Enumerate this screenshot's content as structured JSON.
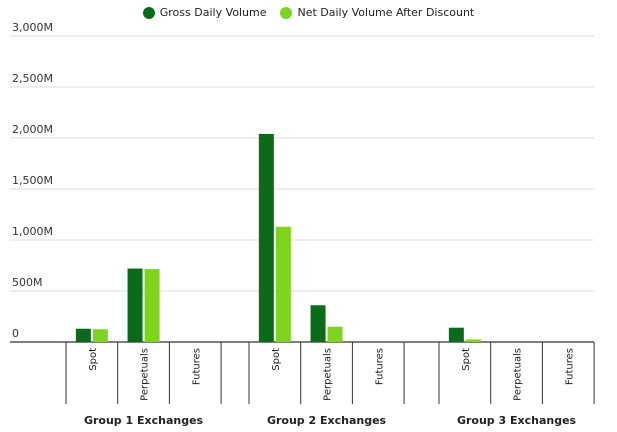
{
  "chart_data": {
    "type": "bar",
    "legend_position": "top",
    "grid": true,
    "ylim": [
      0,
      3000
    ],
    "y_ticks": [
      {
        "value": 0,
        "label": "0"
      },
      {
        "value": 500,
        "label": "500M"
      },
      {
        "value": 1000,
        "label": "1,000M"
      },
      {
        "value": 1500,
        "label": "1,500M"
      },
      {
        "value": 2000,
        "label": "2,000M"
      },
      {
        "value": 2500,
        "label": "2,500M"
      },
      {
        "value": 3000,
        "label": "3,000M"
      }
    ],
    "series": [
      {
        "name": "Gross Daily Volume",
        "color": "#0b6b1b"
      },
      {
        "name": "Net Daily Volume After Discount",
        "color": "#7ed321"
      }
    ],
    "groups": [
      {
        "label": "Group 1 Exchanges",
        "categories": [
          "Spot",
          "Perpetuals",
          "Futures"
        ],
        "values": [
          [
            130,
            720,
            0
          ],
          [
            125,
            715,
            0
          ]
        ]
      },
      {
        "label": "Group 2 Exchanges",
        "categories": [
          "Spot",
          "Perpetuals",
          "Futures"
        ],
        "values": [
          [
            2040,
            360,
            0
          ],
          [
            1130,
            150,
            0
          ]
        ]
      },
      {
        "label": "Group 3 Exchanges",
        "categories": [
          "Spot",
          "Perpetuals",
          "Futures"
        ],
        "values": [
          [
            140,
            0,
            0
          ],
          [
            25,
            0,
            0
          ]
        ]
      }
    ]
  }
}
